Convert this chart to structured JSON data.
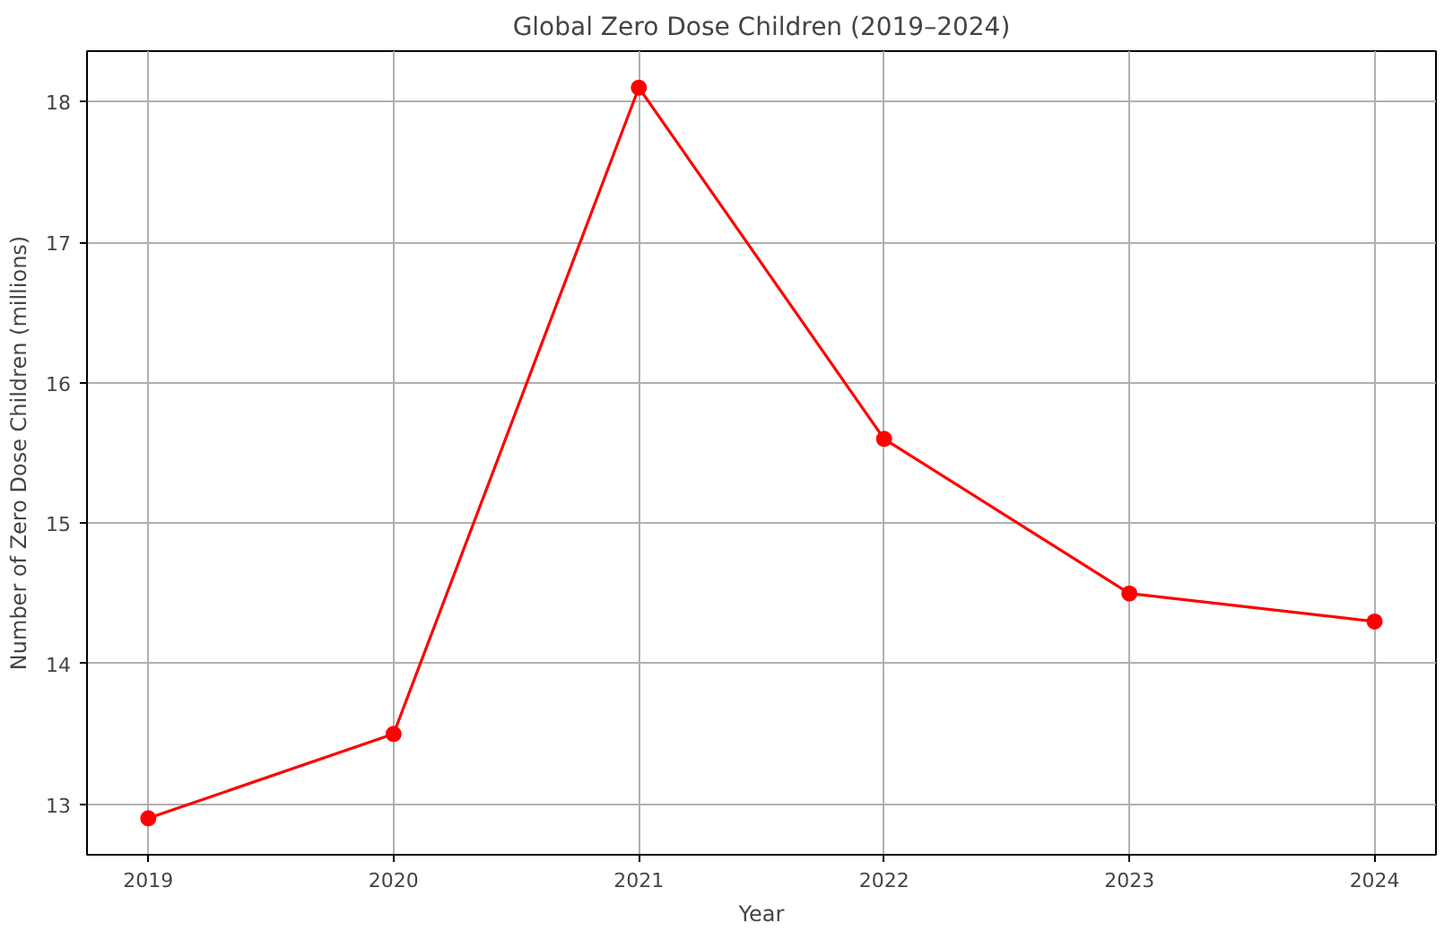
{
  "chart_data": {
    "type": "line",
    "title": "Global Zero Dose Children (2019–2024)",
    "xlabel": "Year",
    "ylabel": "Number of Zero Dose Children (millions)",
    "x": [
      2019,
      2020,
      2021,
      2022,
      2023,
      2024
    ],
    "series": [
      {
        "color": "#ff0000",
        "values": [
          12.9,
          13.5,
          18.1,
          15.6,
          14.5,
          14.3
        ]
      }
    ],
    "xlim": [
      2018.75,
      2024.25
    ],
    "xticks": [
      2019,
      2020,
      2021,
      2022,
      2023,
      2024
    ],
    "ylim": [
      12.64,
      18.36
    ],
    "yticks": [
      13,
      14,
      15,
      16,
      17,
      18
    ],
    "grid": true,
    "marker": "circle",
    "line_style": "solid"
  }
}
